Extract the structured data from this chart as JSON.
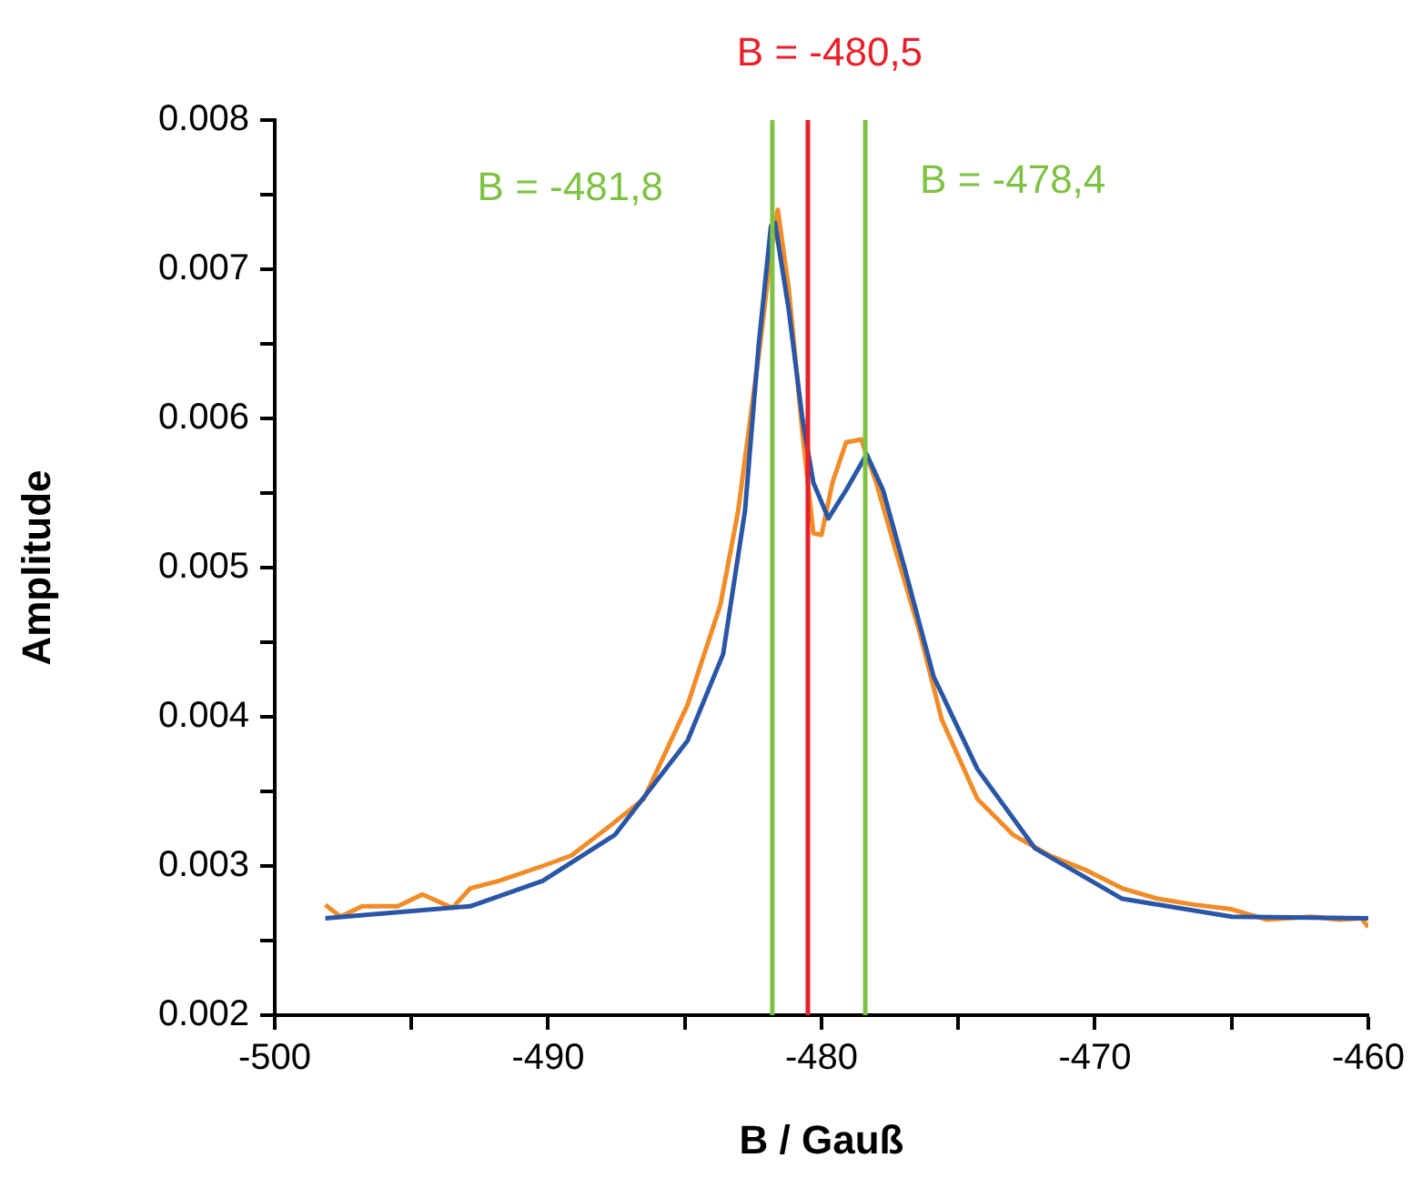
{
  "chart_data": {
    "type": "line",
    "xlabel": "B / Gauß",
    "ylabel": "Amplitude",
    "xlim": [
      -500,
      -460
    ],
    "xticks": [
      -500,
      {
        "value": -495,
        "label": null
      },
      -490,
      {
        "value": -485,
        "label": null
      },
      -480,
      {
        "value": -475,
        "label": null
      },
      -470,
      {
        "value": -465,
        "label": null
      },
      -460
    ],
    "ylim": [
      0.002,
      0.008
    ],
    "yticks": [
      0.002,
      {
        "value": 0.0025,
        "label": null
      },
      0.003,
      {
        "value": 0.0035,
        "label": null
      },
      0.004,
      {
        "value": 0.0045,
        "label": null
      },
      0.005,
      {
        "value": 0.0055,
        "label": null
      },
      0.006,
      {
        "value": 0.0065,
        "label": null
      },
      0.007,
      {
        "value": 0.0075,
        "label": null
      },
      0.008
    ],
    "series": [
      {
        "color": "#2a56a6",
        "x": [
          -498.15,
          -492.85,
          -490.2,
          -487.55,
          -484.9,
          -483.6,
          -482.8,
          -482.3,
          -481.85,
          -481.7,
          -481.2,
          -480.7,
          -480.3,
          -479.75,
          -479.1,
          -478.35,
          -477.75,
          -476.95,
          -475.9,
          -474.3,
          -472.2,
          -469.0,
          -465.0,
          -460.0
        ],
        "values": [
          0.00265,
          0.00273,
          0.0029,
          0.00321,
          0.00384,
          0.00442,
          0.00538,
          0.00649,
          0.00729,
          0.00731,
          0.00673,
          0.006,
          0.00557,
          0.00533,
          0.00552,
          0.00576,
          0.00552,
          0.00499,
          0.00427,
          0.00365,
          0.00312,
          0.00278,
          0.00266,
          0.00265
        ]
      },
      {
        "color": "#f28c28",
        "x": [
          -498.15,
          -497.6,
          -496.8,
          -495.5,
          -494.6,
          -493.5,
          -492.85,
          -491.8,
          -490.2,
          -489.15,
          -487.8,
          -486.5,
          -484.9,
          -483.7,
          -483.05,
          -482.25,
          -481.85,
          -481.6,
          -481.2,
          -480.7,
          -480.3,
          -480.0,
          -479.6,
          -479.1,
          -478.55,
          -478.0,
          -477.25,
          -476.4,
          -475.6,
          -474.3,
          -473.0,
          -471.65,
          -470.3,
          -469.0,
          -467.7,
          -466.35,
          -465.0,
          -463.7,
          -462.1,
          -461.05,
          -460.25,
          -460.0
        ],
        "values": [
          0.00274,
          0.00266,
          0.00273,
          0.00273,
          0.00281,
          0.00272,
          0.00285,
          0.0029,
          0.003,
          0.00307,
          0.00326,
          0.00345,
          0.00408,
          0.00475,
          0.00538,
          0.00649,
          0.00711,
          0.0074,
          0.00687,
          0.00591,
          0.00523,
          0.00522,
          0.00557,
          0.00584,
          0.00586,
          0.00557,
          0.00509,
          0.00456,
          0.00398,
          0.00345,
          0.00321,
          0.00307,
          0.00297,
          0.00285,
          0.00278,
          0.00274,
          0.00271,
          0.00264,
          0.00266,
          0.00264,
          0.00265,
          0.00259
        ]
      }
    ],
    "ref_lines": [
      {
        "axis": "x",
        "value": -481.8,
        "label": "B = -481,8",
        "color": "#7dc242"
      },
      {
        "axis": "x",
        "value": -480.5,
        "label": "B = -480,5",
        "color": "#e8202a"
      },
      {
        "axis": "x",
        "value": -478.4,
        "label": "B = -478,4",
        "color": "#7dc242"
      }
    ],
    "grid": false,
    "legend": false
  }
}
